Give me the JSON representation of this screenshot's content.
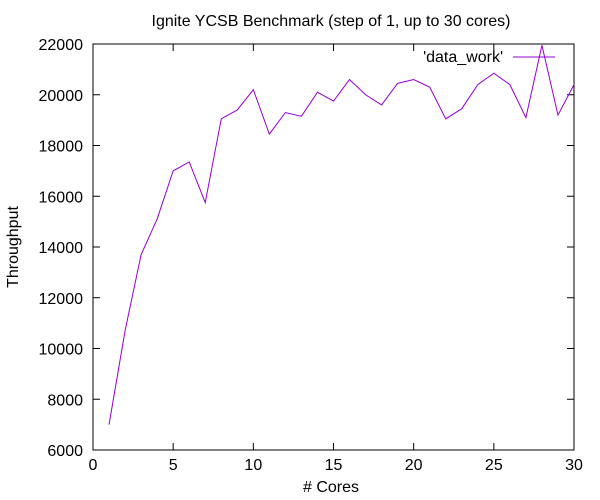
{
  "chart_data": {
    "type": "line",
    "title": "Ignite YCSB Benchmark (step of 1, up to 30 cores)",
    "xlabel": "# Cores",
    "ylabel": "Throughput",
    "xlim": [
      0,
      30
    ],
    "ylim": [
      6000,
      22000
    ],
    "xticks": [
      0,
      5,
      10,
      15,
      20,
      25,
      30
    ],
    "yticks": [
      6000,
      8000,
      10000,
      12000,
      14000,
      16000,
      18000,
      20000,
      22000
    ],
    "grid": false,
    "legend_position": "top-right",
    "series": [
      {
        "name": "'data_work'",
        "color": "#9400d3",
        "x": [
          1,
          2,
          3,
          4,
          5,
          6,
          7,
          8,
          9,
          10,
          11,
          12,
          13,
          14,
          15,
          16,
          17,
          18,
          19,
          20,
          21,
          22,
          23,
          24,
          25,
          26,
          27,
          28,
          29,
          30
        ],
        "y": [
          7000,
          10700,
          13700,
          15100,
          17000,
          17350,
          15750,
          19050,
          19400,
          20200,
          18450,
          19300,
          19150,
          20100,
          19750,
          20600,
          20000,
          19600,
          20450,
          20600,
          20300,
          19050,
          19450,
          20400,
          20850,
          20400,
          19100,
          21950,
          19200,
          20400
        ]
      }
    ]
  }
}
